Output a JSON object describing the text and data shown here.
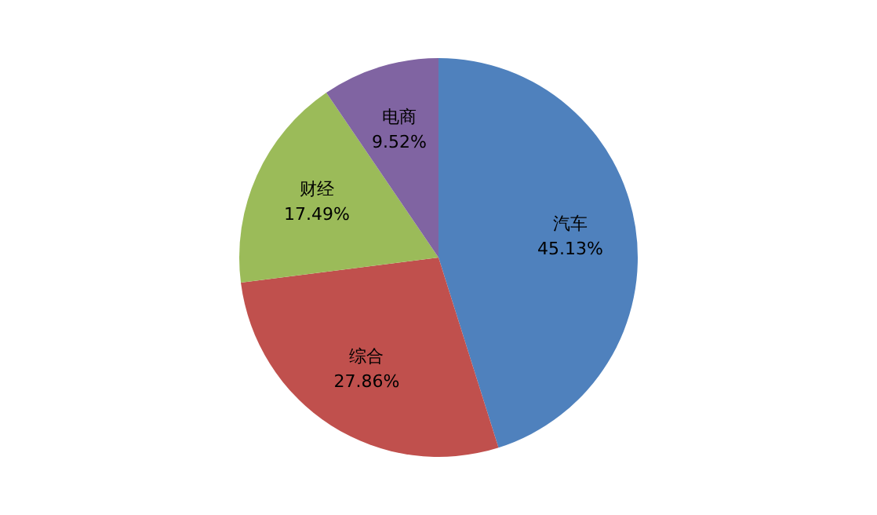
{
  "chart_data": {
    "type": "pie",
    "categories": [
      "汽车",
      "综合",
      "财经",
      "电商"
    ],
    "values": [
      45.13,
      27.86,
      17.49,
      9.52
    ],
    "colors": [
      "#4f81bd",
      "#c0504d",
      "#9bbb59",
      "#8064a2"
    ],
    "value_labels": [
      "45.13%",
      "27.86%",
      "17.49%",
      "9.52%"
    ],
    "legend": false
  }
}
